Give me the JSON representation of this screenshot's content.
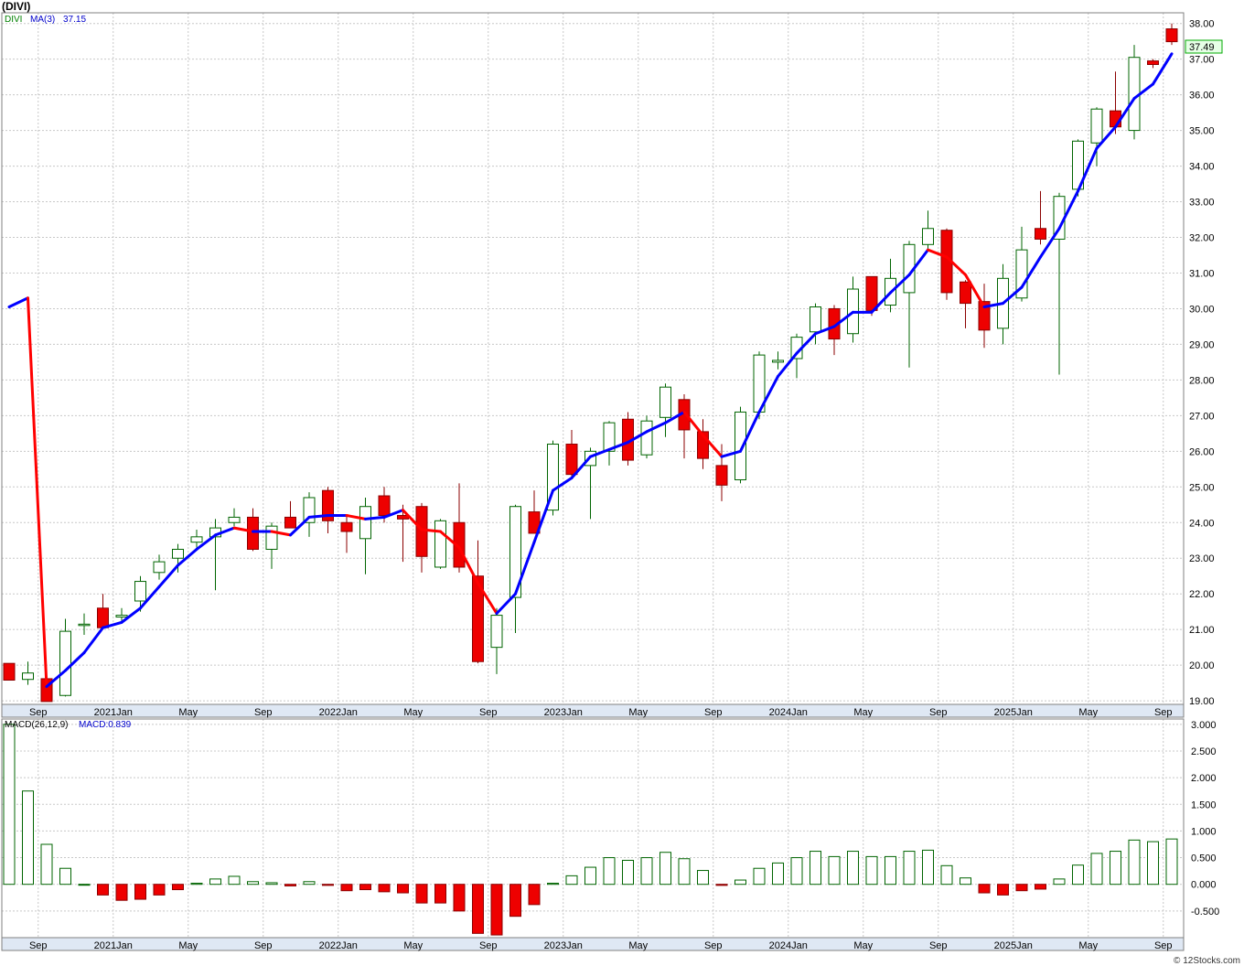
{
  "title": "(DIVI)",
  "footer": "© 12Stocks.com",
  "chart_data": {
    "type": "candlestick",
    "symbol": "DIVI",
    "ma_label": "MA(3)",
    "ma_value": "37.15",
    "last_price": "37.49",
    "macd_label": "MACD(26,12,9)",
    "macd_value": "MACD:0.839",
    "price_ticks": [
      "19.00",
      "20.00",
      "21.00",
      "22.00",
      "23.00",
      "24.00",
      "25.00",
      "26.00",
      "27.00",
      "28.00",
      "29.00",
      "30.00",
      "31.00",
      "32.00",
      "33.00",
      "34.00",
      "35.00",
      "36.00",
      "37.00",
      "38.00"
    ],
    "macd_ticks": [
      "-0.500",
      "0.000",
      "0.500",
      "1.000",
      "1.500",
      "2.000",
      "2.500",
      "3.000"
    ],
    "x_labels": [
      {
        "text": "Sep",
        "i": 1
      },
      {
        "text": "2021Jan",
        "i": 5
      },
      {
        "text": "May",
        "i": 9
      },
      {
        "text": "Sep",
        "i": 13
      },
      {
        "text": "2022Jan",
        "i": 17
      },
      {
        "text": "May",
        "i": 21
      },
      {
        "text": "Sep",
        "i": 25
      },
      {
        "text": "2023Jan",
        "i": 29
      },
      {
        "text": "May",
        "i": 33
      },
      {
        "text": "Sep",
        "i": 37
      },
      {
        "text": "2024Jan",
        "i": 41
      },
      {
        "text": "May",
        "i": 45
      },
      {
        "text": "Sep",
        "i": 49
      },
      {
        "text": "2025Jan",
        "i": 53
      },
      {
        "text": "May",
        "i": 57
      },
      {
        "text": "Sep",
        "i": 61
      }
    ],
    "price_range": [
      18.9,
      38.3
    ],
    "macd_range": [
      -1.0,
      3.1
    ],
    "candles": [
      [
        20.05,
        20.05,
        19.58,
        19.58
      ],
      [
        19.6,
        20.1,
        19.45,
        19.78
      ],
      [
        19.62,
        19.62,
        18.98,
        18.98
      ],
      [
        19.15,
        21.3,
        19.12,
        20.95
      ],
      [
        21.15,
        21.45,
        20.85,
        21.15
      ],
      [
        21.6,
        22.0,
        21.0,
        21.05
      ],
      [
        21.35,
        21.6,
        21.2,
        21.4
      ],
      [
        21.8,
        22.5,
        21.5,
        22.35
      ],
      [
        22.6,
        23.1,
        22.4,
        22.9
      ],
      [
        23.0,
        23.4,
        22.6,
        23.25
      ],
      [
        23.45,
        23.8,
        23.3,
        23.6
      ],
      [
        23.6,
        24.1,
        22.1,
        23.85
      ],
      [
        24.0,
        24.4,
        23.9,
        24.15
      ],
      [
        24.15,
        24.4,
        23.2,
        23.25
      ],
      [
        23.25,
        24.0,
        22.7,
        23.9
      ],
      [
        24.15,
        24.6,
        23.9,
        23.85
      ],
      [
        24.0,
        24.85,
        23.6,
        24.7
      ],
      [
        24.9,
        25.0,
        23.7,
        24.05
      ],
      [
        24.0,
        24.2,
        23.15,
        23.75
      ],
      [
        23.55,
        24.7,
        22.55,
        24.45
      ],
      [
        24.75,
        25.0,
        24.0,
        24.2
      ],
      [
        24.2,
        24.5,
        22.9,
        24.1
      ],
      [
        24.45,
        24.55,
        22.6,
        23.05
      ],
      [
        22.75,
        24.1,
        22.7,
        24.05
      ],
      [
        24.0,
        25.1,
        22.6,
        22.75
      ],
      [
        22.5,
        23.5,
        20.05,
        20.1
      ],
      [
        20.5,
        21.6,
        19.75,
        21.4
      ],
      [
        21.9,
        24.5,
        20.9,
        24.45
      ],
      [
        24.3,
        24.9,
        23.8,
        23.7
      ],
      [
        24.35,
        26.3,
        24.2,
        26.2
      ],
      [
        26.2,
        26.6,
        25.3,
        25.35
      ],
      [
        25.6,
        26.1,
        24.1,
        26.0
      ],
      [
        26.0,
        26.85,
        25.6,
        26.8
      ],
      [
        26.9,
        27.1,
        25.6,
        25.75
      ],
      [
        25.9,
        27.0,
        25.8,
        26.85
      ],
      [
        26.95,
        27.9,
        26.4,
        27.8
      ],
      [
        27.45,
        27.6,
        25.8,
        26.6
      ],
      [
        26.55,
        26.9,
        25.5,
        25.8
      ],
      [
        25.6,
        26.2,
        24.6,
        25.05
      ],
      [
        25.2,
        27.25,
        25.1,
        27.1
      ],
      [
        27.1,
        28.8,
        26.9,
        28.7
      ],
      [
        28.5,
        28.8,
        28.3,
        28.55
      ],
      [
        28.6,
        29.3,
        28.05,
        29.2
      ],
      [
        29.35,
        30.15,
        29.0,
        30.05
      ],
      [
        30.0,
        30.1,
        28.7,
        29.15
      ],
      [
        29.3,
        30.9,
        29.05,
        30.55
      ],
      [
        30.9,
        30.9,
        29.8,
        29.95
      ],
      [
        30.1,
        31.4,
        29.9,
        30.85
      ],
      [
        30.45,
        31.9,
        28.35,
        31.8
      ],
      [
        31.8,
        32.75,
        31.6,
        32.25
      ],
      [
        32.2,
        32.25,
        30.25,
        30.45
      ],
      [
        30.75,
        30.8,
        29.45,
        30.15
      ],
      [
        30.2,
        30.7,
        28.9,
        29.4
      ],
      [
        29.45,
        31.25,
        29.0,
        30.85
      ],
      [
        30.3,
        32.3,
        30.2,
        31.65
      ],
      [
        32.25,
        33.3,
        31.8,
        31.95
      ],
      [
        31.95,
        33.25,
        28.15,
        33.15
      ],
      [
        33.35,
        34.75,
        33.15,
        34.7
      ],
      [
        34.65,
        35.65,
        34.0,
        35.6
      ],
      [
        35.55,
        36.65,
        34.9,
        35.1
      ],
      [
        35.0,
        37.4,
        34.75,
        37.05
      ],
      [
        36.95,
        37.0,
        36.75,
        36.85
      ],
      [
        37.85,
        38.0,
        37.4,
        37.49
      ]
    ],
    "ma": [
      30.05,
      30.3,
      19.4,
      19.85,
      20.35,
      21.05,
      21.2,
      21.6,
      22.2,
      22.8,
      23.25,
      23.65,
      23.85,
      23.75,
      23.75,
      23.65,
      24.15,
      24.2,
      24.2,
      24.1,
      24.15,
      24.35,
      23.8,
      23.75,
      23.3,
      22.3,
      21.45,
      22.0,
      23.45,
      24.9,
      25.25,
      25.85,
      26.05,
      26.25,
      26.55,
      26.8,
      27.1,
      26.45,
      25.85,
      26.0,
      27.1,
      28.1,
      28.75,
      29.3,
      29.5,
      29.9,
      29.9,
      30.45,
      30.95,
      31.65,
      31.45,
      30.95,
      30.05,
      30.15,
      30.6,
      31.45,
      32.25,
      33.3,
      34.5,
      35.1,
      35.9,
      36.3,
      37.15
    ],
    "macd": [
      3.0,
      1.75,
      0.75,
      0.3,
      0.0,
      -0.2,
      -0.3,
      -0.28,
      -0.2,
      -0.1,
      0.02,
      0.1,
      0.15,
      0.05,
      0.03,
      -0.03,
      0.05,
      -0.02,
      -0.12,
      -0.1,
      -0.14,
      -0.16,
      -0.35,
      -0.35,
      -0.5,
      -0.92,
      -0.95,
      -0.6,
      -0.38,
      0.02,
      0.16,
      0.32,
      0.5,
      0.45,
      0.5,
      0.6,
      0.48,
      0.26,
      -0.02,
      0.08,
      0.3,
      0.4,
      0.5,
      0.62,
      0.52,
      0.62,
      0.52,
      0.52,
      0.62,
      0.64,
      0.35,
      0.12,
      -0.16,
      -0.2,
      -0.12,
      -0.09,
      0.1,
      0.36,
      0.58,
      0.62,
      0.83,
      0.8,
      0.85
    ]
  }
}
